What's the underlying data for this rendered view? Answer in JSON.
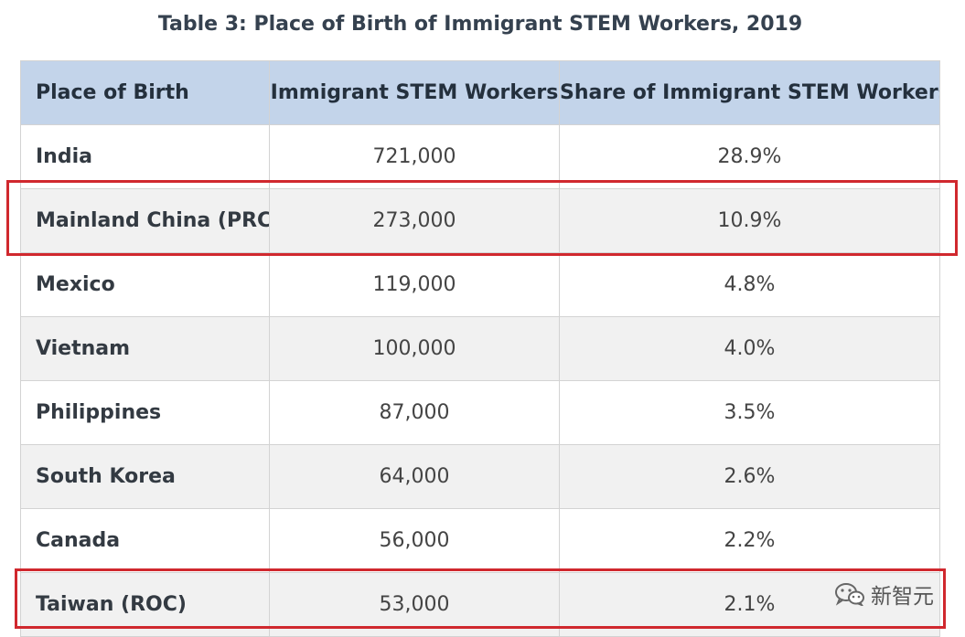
{
  "title": "Table 3: Place of Birth of Immigrant STEM Workers, 2019",
  "table": {
    "headers": [
      "Place of Birth",
      "Immigrant STEM Workers",
      "Share of Immigrant STEM Workers"
    ],
    "rows": [
      {
        "place": "India",
        "workers": "721,000",
        "share": "28.9%"
      },
      {
        "place": "Mainland China (PRC)",
        "workers": "273,000",
        "share": "10.9%"
      },
      {
        "place": "Mexico",
        "workers": "119,000",
        "share": "4.8%"
      },
      {
        "place": "Vietnam",
        "workers": "100,000",
        "share": "4.0%"
      },
      {
        "place": "Philippines",
        "workers": "87,000",
        "share": "3.5%"
      },
      {
        "place": "South Korea",
        "workers": "64,000",
        "share": "2.6%"
      },
      {
        "place": "Canada",
        "workers": "56,000",
        "share": "2.2%"
      },
      {
        "place": "Taiwan (ROC)",
        "workers": "53,000",
        "share": "2.1%"
      }
    ]
  },
  "highlight_color": "#d0282e",
  "header_color": "#c3d4ea",
  "watermark": {
    "icon": "wechat-icon",
    "text": "新智元"
  }
}
